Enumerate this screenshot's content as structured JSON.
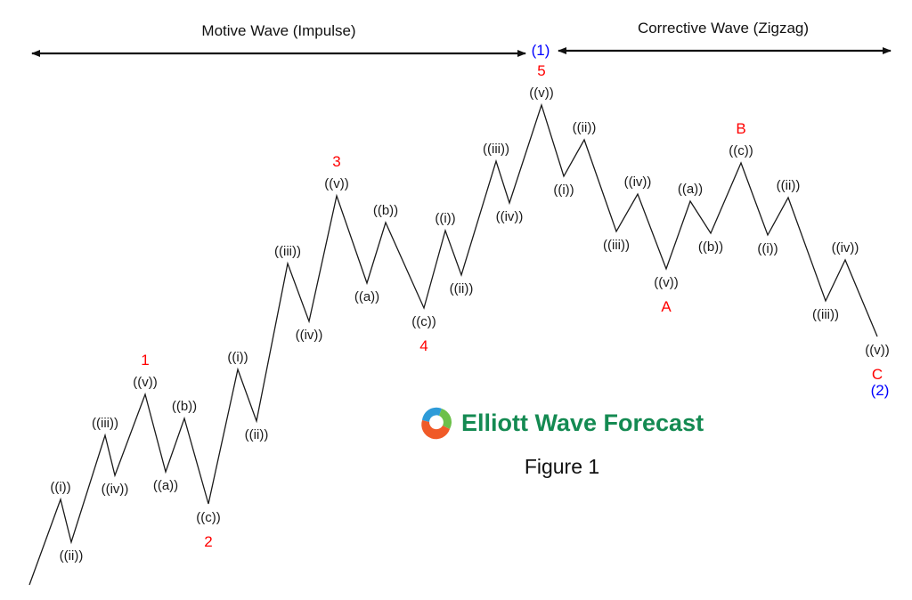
{
  "header": {
    "motive_label": "Motive Wave (Impulse)",
    "corrective_label": "Corrective Wave (Zigzag)",
    "top_degree_label": "(1)",
    "end_degree_label": "(2)"
  },
  "colors": {
    "line": "#1a1a1a",
    "primary_degree": "#ff0000",
    "intermediate_degree": "#0000ff",
    "brand": "#148a52"
  },
  "waves": [
    {
      "label": "",
      "degree": ""
    },
    {
      "label": "((i))",
      "degree": ""
    },
    {
      "label": "((ii))",
      "degree": ""
    },
    {
      "label": "((iii))",
      "degree": ""
    },
    {
      "label": "((iv))",
      "degree": ""
    },
    {
      "label": "((v))",
      "degree": "1"
    },
    {
      "label": "((a))",
      "degree": ""
    },
    {
      "label": "((b))",
      "degree": ""
    },
    {
      "label": "((c))",
      "degree": "2"
    },
    {
      "label": "((i))",
      "degree": ""
    },
    {
      "label": "((ii))",
      "degree": ""
    },
    {
      "label": "((iii))",
      "degree": ""
    },
    {
      "label": "((iv))",
      "degree": ""
    },
    {
      "label": "((v))",
      "degree": "3"
    },
    {
      "label": "((a))",
      "degree": ""
    },
    {
      "label": "((b))",
      "degree": ""
    },
    {
      "label": "((c))",
      "degree": "4"
    },
    {
      "label": "((i))",
      "degree": ""
    },
    {
      "label": "((ii))",
      "degree": ""
    },
    {
      "label": "((iii))",
      "degree": ""
    },
    {
      "label": "((iv))",
      "degree": ""
    },
    {
      "label": "((v))",
      "degree": "5"
    },
    {
      "label": "((i))",
      "degree": ""
    },
    {
      "label": "((ii))",
      "degree": ""
    },
    {
      "label": "((iii))",
      "degree": ""
    },
    {
      "label": "((iv))",
      "degree": ""
    },
    {
      "label": "((v))",
      "degree": "A"
    },
    {
      "label": "((a))",
      "degree": ""
    },
    {
      "label": "((b))",
      "degree": ""
    },
    {
      "label": "((c))",
      "degree": "B"
    },
    {
      "label": "((i))",
      "degree": ""
    },
    {
      "label": "((ii))",
      "degree": ""
    },
    {
      "label": "((iii))",
      "degree": ""
    },
    {
      "label": "((iv))",
      "degree": ""
    },
    {
      "label": "((v))",
      "degree": "C"
    }
  ],
  "logo": {
    "text": "Elliott Wave Forecast"
  },
  "caption": "Figure 1"
}
